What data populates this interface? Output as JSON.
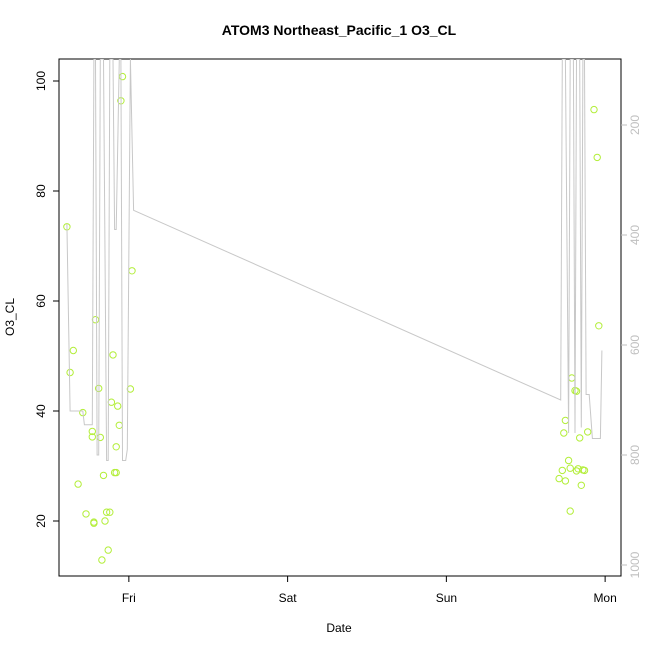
{
  "chart_data": {
    "type": "scatter",
    "title": "ATOM3 Northeast_Pacific_1 O3_CL",
    "xlabel": "Date",
    "ylabel": "O3_CL",
    "x_ticks": [
      {
        "label": "Fri",
        "value": 1.0
      },
      {
        "label": "Sat",
        "value": 2.0
      },
      {
        "label": "Sun",
        "value": 3.0
      },
      {
        "label": "Mon",
        "value": 4.0
      }
    ],
    "xlim": [
      0.56,
      4.1
    ],
    "ylim": [
      10,
      104
    ],
    "y_ticks": [
      20,
      40,
      60,
      80,
      100
    ],
    "y2_ticks": [
      200,
      400,
      600,
      800,
      1000
    ],
    "y2lim": [
      1020,
      80
    ],
    "grid": false,
    "series": [
      {
        "kind": "points",
        "color": "#b3ee3a",
        "points": [
          [
            0.61,
            73.5
          ],
          [
            0.63,
            47.0
          ],
          [
            0.65,
            51.0
          ],
          [
            0.68,
            26.7
          ],
          [
            0.71,
            39.7
          ],
          [
            0.73,
            21.3
          ],
          [
            0.77,
            36.3
          ],
          [
            0.77,
            35.3
          ],
          [
            0.78,
            19.8
          ],
          [
            0.78,
            19.6
          ],
          [
            0.79,
            56.6
          ],
          [
            0.81,
            44.1
          ],
          [
            0.82,
            35.2
          ],
          [
            0.83,
            12.9
          ],
          [
            0.84,
            28.3
          ],
          [
            0.85,
            20.0
          ],
          [
            0.86,
            21.6
          ],
          [
            0.88,
            21.6
          ],
          [
            0.87,
            14.7
          ],
          [
            0.89,
            41.6
          ],
          [
            0.9,
            50.2
          ],
          [
            0.91,
            28.8
          ],
          [
            0.92,
            28.8
          ],
          [
            0.92,
            33.5
          ],
          [
            0.93,
            40.9
          ],
          [
            0.94,
            37.4
          ],
          [
            0.95,
            96.4
          ],
          [
            0.96,
            100.8
          ],
          [
            1.01,
            44.0
          ],
          [
            1.02,
            65.5
          ],
          [
            3.71,
            27.7
          ],
          [
            3.73,
            29.2
          ],
          [
            3.74,
            36.0
          ],
          [
            3.75,
            38.3
          ],
          [
            3.75,
            27.3
          ],
          [
            3.77,
            31.0
          ],
          [
            3.78,
            29.6
          ],
          [
            3.78,
            21.8
          ],
          [
            3.79,
            46.0
          ],
          [
            3.81,
            43.7
          ],
          [
            3.82,
            43.6
          ],
          [
            3.82,
            29.1
          ],
          [
            3.83,
            29.5
          ],
          [
            3.84,
            35.1
          ],
          [
            3.85,
            26.5
          ],
          [
            3.86,
            29.3
          ],
          [
            3.87,
            29.2
          ],
          [
            3.89,
            36.2
          ],
          [
            3.93,
            94.8
          ],
          [
            3.95,
            86.1
          ],
          [
            3.96,
            55.5
          ]
        ]
      },
      {
        "kind": "line",
        "axis": "right",
        "color": "#c8c8c8",
        "points": [
          [
            0.61,
            380
          ],
          [
            0.63,
            720
          ],
          [
            0.71,
            720
          ],
          [
            0.72,
            745
          ],
          [
            0.77,
            745
          ],
          [
            0.78,
            80
          ],
          [
            0.79,
            80
          ],
          [
            0.8,
            800
          ],
          [
            0.81,
            800
          ],
          [
            0.82,
            80
          ],
          [
            0.84,
            80
          ],
          [
            0.86,
            810
          ],
          [
            0.87,
            810
          ],
          [
            0.88,
            80
          ],
          [
            0.9,
            80
          ],
          [
            0.91,
            390
          ],
          [
            0.92,
            390
          ],
          [
            0.94,
            80
          ],
          [
            0.95,
            80
          ],
          [
            0.96,
            810
          ],
          [
            0.98,
            810
          ],
          [
            0.99,
            790
          ],
          [
            1.01,
            80
          ],
          [
            1.03,
            355
          ],
          [
            3.72,
            700
          ],
          [
            3.73,
            80
          ],
          [
            3.75,
            80
          ],
          [
            3.77,
            760
          ],
          [
            3.78,
            80
          ],
          [
            3.8,
            80
          ],
          [
            3.81,
            760
          ],
          [
            3.82,
            80
          ],
          [
            3.84,
            80
          ],
          [
            3.85,
            750
          ],
          [
            3.86,
            80
          ],
          [
            3.87,
            80
          ],
          [
            3.88,
            690
          ],
          [
            3.9,
            690
          ],
          [
            3.92,
            770
          ],
          [
            3.97,
            770
          ],
          [
            3.98,
            610
          ]
        ]
      }
    ]
  }
}
